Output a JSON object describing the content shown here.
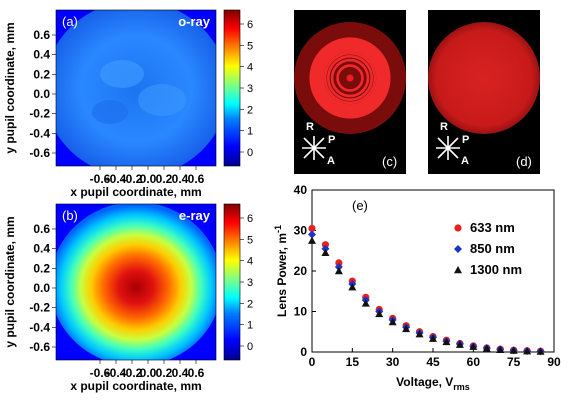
{
  "colormap": [
    "#00008f",
    "#0000ff",
    "#0080ff",
    "#00ffff",
    "#80ff80",
    "#ffff00",
    "#ff8000",
    "#ff0000",
    "#800000"
  ],
  "panels": {
    "a": {
      "label": "(a)",
      "title": "o-ray"
    },
    "b": {
      "label": "(b)",
      "title": "e-ray"
    },
    "c": {
      "label": "(c)"
    },
    "d": {
      "label": "(d)"
    },
    "e": {
      "label": "(e)"
    }
  },
  "polarizer": {
    "r": "R",
    "p": "P",
    "a": "A"
  },
  "colorbar_ticks": [
    "0",
    "1",
    "2",
    "3",
    "4",
    "5",
    "6"
  ],
  "maps": {
    "xlabel": "x pupil coordinate, mm",
    "ylabel": "y pupil coordinate, mm",
    "xticks": [
      "-0.6",
      "-0.4",
      "-0.2",
      "0.0",
      "0.2",
      "0.4",
      "0.6"
    ],
    "yticks": [
      "0.6",
      "0.4",
      "0.2",
      "0.0",
      "-0.2",
      "-0.4",
      "-0.6"
    ]
  },
  "chart_data": {
    "type": "scatter",
    "xlabel_main": "Voltage, V",
    "xlabel_sub": "rms",
    "ylabel": "Lens Power, m",
    "ylabel_sup": "-1",
    "xlim": [
      0,
      90
    ],
    "ylim": [
      0,
      40
    ],
    "xticks": [
      "0",
      "15",
      "30",
      "45",
      "60",
      "75",
      "90"
    ],
    "yticks": [
      "0",
      "10",
      "20",
      "30",
      "40"
    ],
    "series": [
      {
        "name": "633 nm",
        "color": "#e8211d",
        "marker": "circle",
        "x": [
          0,
          5,
          10,
          15,
          20,
          25,
          30,
          35,
          40,
          45,
          50,
          55,
          60,
          65,
          70,
          75,
          80,
          85
        ],
        "y": [
          30.5,
          26.5,
          22,
          17.5,
          13.5,
          10.5,
          8.3,
          6.5,
          5,
          3.8,
          2.9,
          2.1,
          1.5,
          1.0,
          0.7,
          0.45,
          0.3,
          0.2
        ]
      },
      {
        "name": "850 nm",
        "color": "#1a34c8",
        "marker": "diamond",
        "x": [
          0,
          5,
          10,
          15,
          20,
          25,
          30,
          35,
          40,
          45,
          50,
          55,
          60,
          65,
          70,
          75,
          80,
          85
        ],
        "y": [
          29,
          25.5,
          21,
          16.8,
          12.8,
          10,
          7.9,
          6.1,
          4.7,
          3.6,
          2.7,
          2.0,
          1.4,
          0.95,
          0.65,
          0.4,
          0.25,
          0.15
        ]
      },
      {
        "name": "1300 nm",
        "color": "#111111",
        "marker": "triangle",
        "x": [
          0,
          5,
          10,
          15,
          20,
          25,
          30,
          35,
          40,
          45,
          50,
          55,
          60,
          65,
          70,
          75,
          80,
          85
        ],
        "y": [
          27.5,
          24.5,
          20,
          16,
          12,
          9.4,
          7.4,
          5.7,
          4.4,
          3.3,
          2.5,
          1.8,
          1.3,
          0.85,
          0.55,
          0.35,
          0.2,
          0.1
        ]
      }
    ]
  }
}
